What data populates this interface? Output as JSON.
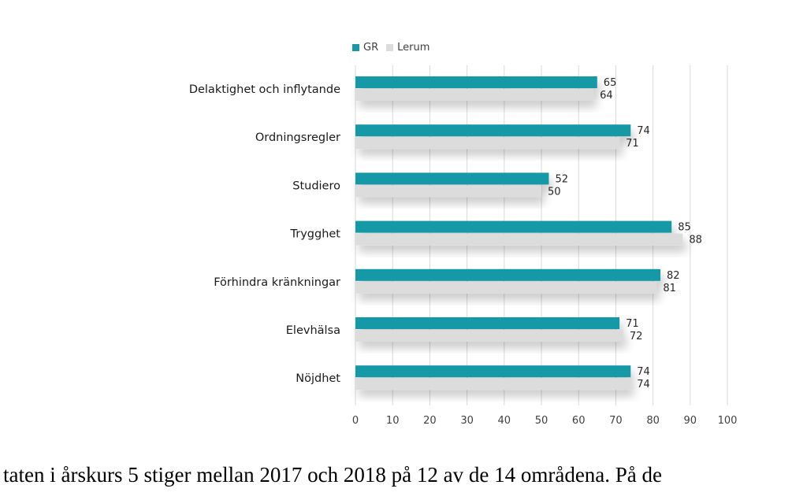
{
  "chart_data": {
    "type": "bar",
    "orientation": "horizontal",
    "categories": [
      "Delaktighet och inflytande",
      "Ordningsregler",
      "Studiero",
      "Trygghet",
      "Förhindra kränkningar",
      "Elevhälsa",
      "Nöjdhet"
    ],
    "series": [
      {
        "name": "GR",
        "color": "#1699a6",
        "values": [
          65,
          74,
          52,
          85,
          82,
          71,
          74
        ]
      },
      {
        "name": "Lerum",
        "color": "#dcdcdc",
        "values": [
          64,
          71,
          50,
          88,
          81,
          72,
          74
        ]
      }
    ],
    "xlim": [
      0,
      100
    ],
    "xticks": [
      "0",
      "10",
      "20",
      "30",
      "40",
      "50",
      "60",
      "70",
      "80",
      "90",
      "100"
    ],
    "grid": true,
    "legend_position": "top-left",
    "title": "",
    "xlabel": "",
    "ylabel": ""
  },
  "body_text": "taten i årskurs 5 stiger mellan 2017 och 2018 på 12 av de 14 områdena. På de"
}
